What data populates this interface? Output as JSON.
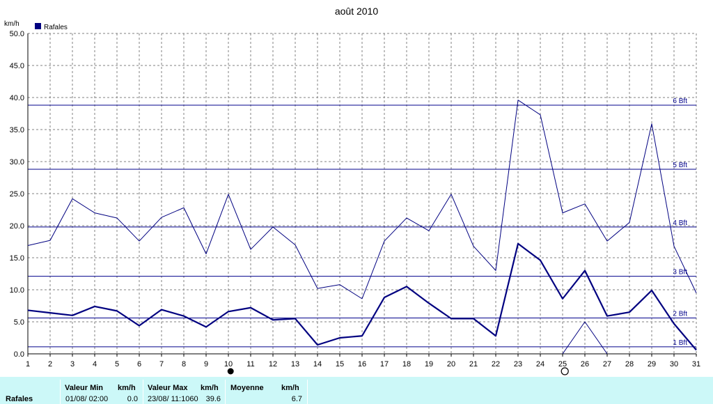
{
  "chart_data": {
    "type": "line",
    "title": "août 2010",
    "ylabel": "km/h",
    "ylim": [
      0,
      50
    ],
    "xlim": [
      1,
      31
    ],
    "grid": true,
    "legend": "top-left",
    "categories": [
      "1",
      "2",
      "3",
      "4",
      "5",
      "6",
      "7",
      "8",
      "9",
      "10",
      "11",
      "12",
      "13",
      "14",
      "15",
      "16",
      "17",
      "18",
      "19",
      "20",
      "21",
      "22",
      "23",
      "24",
      "25",
      "26",
      "27",
      "28",
      "29",
      "30",
      "31"
    ],
    "yticks": [
      "0.0",
      "5.0",
      "10.0",
      "15.0",
      "20.0",
      "25.0",
      "30.0",
      "35.0",
      "40.0",
      "45.0",
      "50.0"
    ],
    "legend_label": "Rafales",
    "series": [
      {
        "name": "Rafales",
        "style": "thick",
        "values": [
          6.8,
          6.4,
          6.0,
          7.4,
          6.7,
          4.4,
          6.9,
          5.9,
          4.2,
          6.6,
          7.2,
          5.3,
          5.5,
          1.4,
          2.5,
          2.8,
          8.8,
          10.5,
          7.9,
          5.5,
          5.5,
          2.8,
          17.2,
          14.6,
          8.6,
          13.0,
          5.9,
          6.5,
          9.9,
          4.7,
          0.6
        ]
      },
      {
        "style": "thin",
        "values": [
          16.9,
          17.7,
          24.2,
          22.0,
          21.2,
          17.6,
          21.3,
          22.8,
          15.6,
          24.9,
          16.3,
          19.8,
          17.0,
          10.2,
          10.8,
          8.6,
          17.6,
          21.2,
          19.2,
          24.9,
          16.8,
          13.0,
          39.6,
          37.3,
          22.0,
          23.4,
          17.6,
          20.5,
          35.9,
          16.8,
          9.5
        ]
      },
      {
        "style": "thin",
        "values": [
          null,
          null,
          null,
          null,
          null,
          null,
          null,
          null,
          null,
          null,
          null,
          null,
          null,
          null,
          null,
          null,
          null,
          null,
          null,
          null,
          null,
          null,
          null,
          null,
          0.0,
          5.0,
          0.0,
          null,
          null,
          null,
          null
        ]
      }
    ],
    "beaufort": [
      {
        "label": "1 Bft",
        "value": 1.1
      },
      {
        "label": "2 Bft",
        "value": 5.6
      },
      {
        "label": "3 Bft",
        "value": 12.1
      },
      {
        "label": "4 Bft",
        "value": 19.8
      },
      {
        "label": "5 Bft",
        "value": 28.8
      },
      {
        "label": "6 Bft",
        "value": 38.8
      }
    ],
    "moon_phases": [
      {
        "day": 10,
        "phase": "full"
      },
      {
        "day": 25,
        "phase": "new"
      }
    ],
    "colors": {
      "series": "#000080",
      "beaufort": "#00008b",
      "grid": "#808080",
      "axis": "#000000",
      "stats_bg": "#ccf8f8"
    }
  },
  "stats": {
    "row_label": "Rafales",
    "min_header": "Valeur Min",
    "min_unit": "km/h",
    "min_date": "01/08/  02:00",
    "min_value": "0.0",
    "max_header": "Valeur Max",
    "max_unit": "km/h",
    "max_date": "23/08/  11:1060",
    "max_value": "39.6",
    "avg_header": "Moyenne",
    "avg_unit": "km/h",
    "avg_value": "6.7"
  }
}
